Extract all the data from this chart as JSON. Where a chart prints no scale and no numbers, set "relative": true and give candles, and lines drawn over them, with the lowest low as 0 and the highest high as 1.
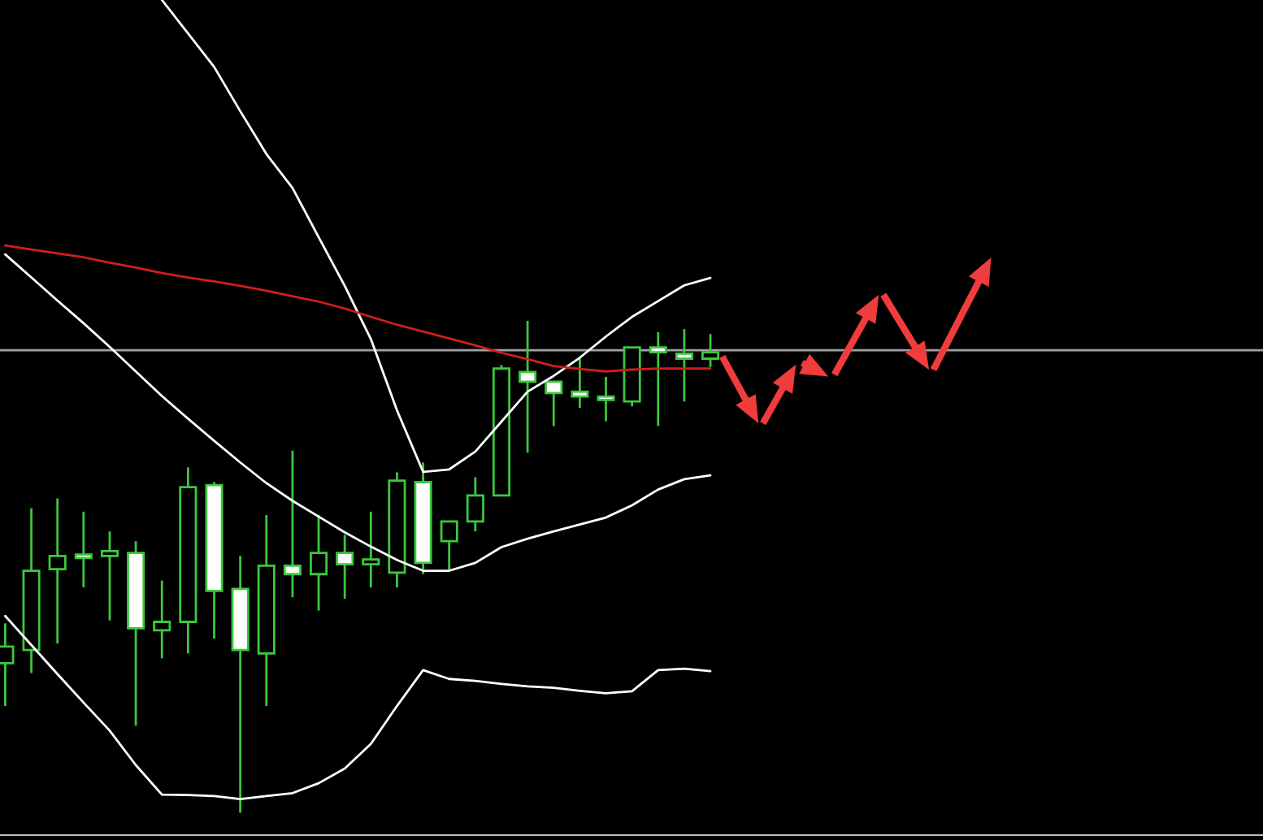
{
  "chart_data": {
    "type": "candlestick",
    "relative": true,
    "color": "#3cc83c",
    "categories": [
      null,
      null,
      null,
      null,
      null,
      null,
      null,
      null,
      null,
      null,
      null,
      null,
      null,
      null,
      null,
      null,
      null,
      null,
      null,
      null,
      null,
      null,
      null,
      null,
      null,
      null,
      null,
      null
    ],
    "ohlc": [
      [
        0.304,
        0.385,
        0.217,
        0.338
      ],
      [
        0.331,
        0.619,
        0.284,
        0.492
      ],
      [
        0.495,
        0.639,
        0.344,
        0.522
      ],
      [
        0.525,
        0.612,
        0.458,
        0.518
      ],
      [
        0.522,
        0.572,
        0.391,
        0.532
      ],
      [
        0.528,
        0.552,
        0.177,
        0.375
      ],
      [
        0.371,
        0.472,
        0.314,
        0.388
      ],
      [
        0.388,
        0.702,
        0.324,
        0.662
      ],
      [
        0.666,
        0.672,
        0.354,
        0.451
      ],
      [
        0.455,
        0.522,
        0.0,
        0.331
      ],
      [
        0.324,
        0.605,
        0.217,
        0.502
      ],
      [
        0.502,
        0.736,
        0.438,
        0.485
      ],
      [
        0.485,
        0.605,
        0.411,
        0.528
      ],
      [
        0.528,
        0.565,
        0.435,
        0.505
      ],
      [
        0.505,
        0.612,
        0.458,
        0.515
      ],
      [
        0.488,
        0.692,
        0.458,
        0.675
      ],
      [
        0.672,
        0.712,
        0.485,
        0.508
      ],
      [
        0.552,
        0.592,
        0.492,
        0.592
      ],
      [
        0.592,
        0.682,
        0.572,
        0.645
      ],
      [
        0.645,
        0.91,
        0.645,
        0.903
      ],
      [
        0.896,
        1.0,
        0.732,
        0.876
      ],
      [
        0.876,
        0.876,
        0.786,
        0.853
      ],
      [
        0.856,
        0.926,
        0.823,
        0.846
      ],
      [
        0.846,
        0.886,
        0.796,
        0.839
      ],
      [
        0.836,
        0.946,
        0.826,
        0.946
      ],
      [
        0.946,
        0.977,
        0.786,
        0.936
      ],
      [
        0.933,
        0.983,
        0.836,
        0.923
      ],
      [
        0.923,
        0.973,
        0.906,
        0.936
      ]
    ],
    "series": [
      {
        "type": "line",
        "color": "#ffffff",
        "values": [
          null,
          null,
          null,
          null,
          null,
          null,
          1.652,
          1.584,
          1.516,
          1.426,
          1.339,
          1.27,
          1.17,
          1.071,
          0.963,
          0.818,
          0.693,
          0.698,
          0.734,
          0.795,
          0.856,
          0.888,
          0.925,
          0.968,
          1.008,
          1.04,
          1.072,
          1.087
        ]
      },
      {
        "type": "line",
        "color": "#ffffff",
        "values": [
          1.135,
          1.088,
          1.041,
          0.995,
          0.947,
          0.897,
          0.847,
          0.801,
          0.756,
          0.712,
          0.67,
          0.634,
          0.602,
          0.57,
          0.541,
          0.514,
          0.492,
          0.492,
          0.508,
          0.54,
          0.557,
          0.572,
          0.586,
          0.6,
          0.625,
          0.657,
          0.678,
          0.686
        ]
      },
      {
        "type": "line",
        "color": "#ffffff",
        "values": [
          0.4,
          0.341,
          0.282,
          0.224,
          0.167,
          0.097,
          0.037,
          0.036,
          0.034,
          0.028,
          0.034,
          0.04,
          0.06,
          0.09,
          0.14,
          0.217,
          0.29,
          0.272,
          0.268,
          0.262,
          0.257,
          0.254,
          0.248,
          0.243,
          0.247,
          0.29,
          0.293,
          0.288
        ]
      },
      {
        "type": "line",
        "color": "#d21e1e",
        "values": [
          1.153,
          1.145,
          1.137,
          1.129,
          1.118,
          1.108,
          1.097,
          1.088,
          1.08,
          1.071,
          1.061,
          1.05,
          1.039,
          1.025,
          1.008,
          0.992,
          0.978,
          0.964,
          0.95,
          0.935,
          0.922,
          0.908,
          0.902,
          0.897,
          0.901,
          0.903,
          0.903,
          0.903
        ]
      }
    ],
    "ref_lines": [
      {
        "axis": "y",
        "value": 0.94,
        "color": "#a0a0a8",
        "line_style": "solid"
      }
    ]
  }
}
